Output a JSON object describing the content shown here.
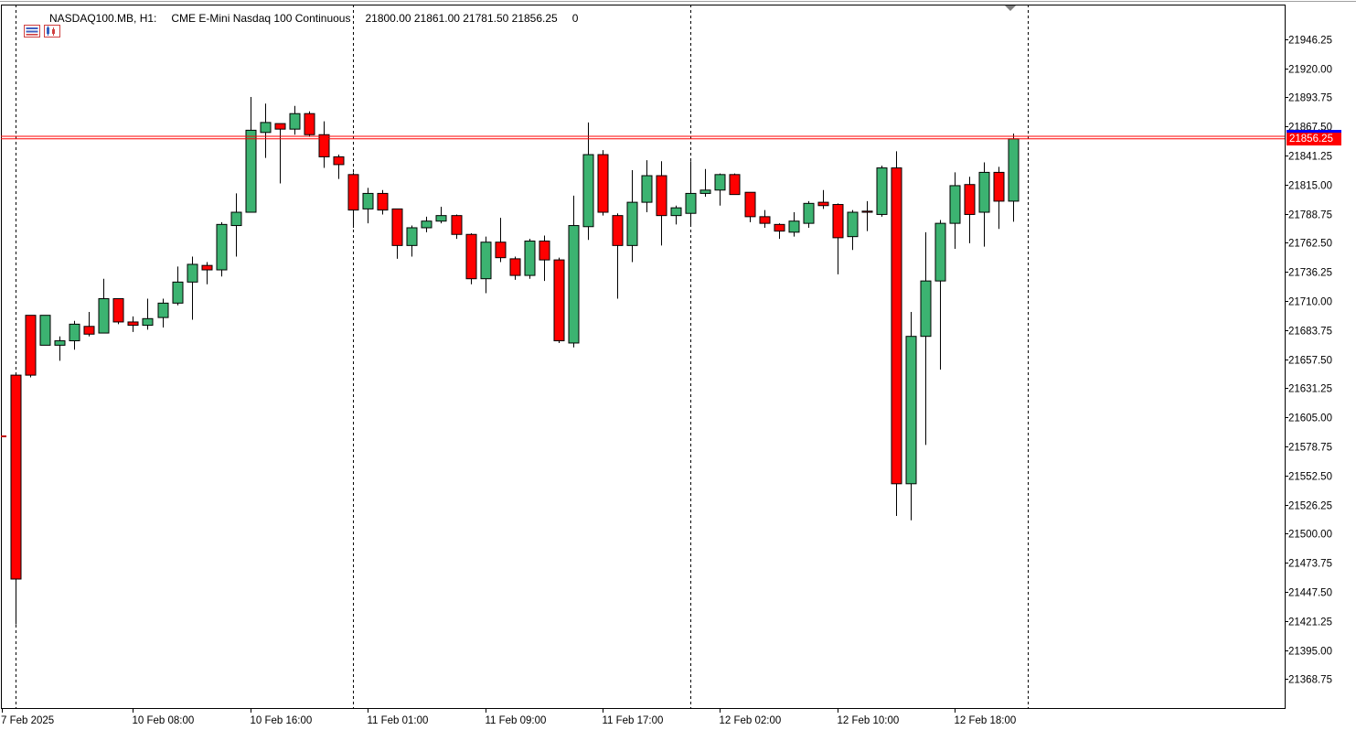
{
  "header": {
    "symbol": "NASDAQ100.MB, H1:",
    "description": "CME E-Mini Nasdaq 100 Continuous",
    "ohlc": "21800.00 21861.00 21781.50 21856.25",
    "volume": "0"
  },
  "colors": {
    "bull": "#3cb371",
    "bear": "#ff0000",
    "wick": "#000000",
    "bid_line": "#ff0000",
    "ask_tag": "#0000ff",
    "grid": "#000000",
    "background": "#ffffff"
  },
  "current_price_label": "21856.25",
  "chart_data": {
    "type": "candlestick",
    "title": "",
    "timeframe": "H1",
    "grid": false,
    "period_separators": true,
    "ylim": [
      21342.6,
      21977.4
    ],
    "y_ticks": [
      "21946.25",
      "21920.00",
      "21893.75",
      "21867.50",
      "21841.25",
      "21815.00",
      "21788.75",
      "21762.50",
      "21736.25",
      "21710.00",
      "21683.75",
      "21657.50",
      "21631.25",
      "21605.00",
      "21578.75",
      "21552.50",
      "21526.25",
      "21500.00",
      "21473.75",
      "21447.50",
      "21421.25",
      "21395.00",
      "21368.75"
    ],
    "x_labels": [
      "7 Feb 2025",
      "10 Feb 08:00",
      "10 Feb 16:00",
      "11 Feb 01:00",
      "11 Feb 09:00",
      "11 Feb 17:00",
      "12 Feb 02:00",
      "12 Feb 10:00",
      "12 Feb 18:00"
    ],
    "x_label_index": [
      0,
      8,
      16,
      24,
      32,
      40,
      48,
      56,
      64
    ],
    "separator_index": [
      0,
      23,
      46,
      69
    ],
    "bid": 21856.25,
    "ask": 21858.5,
    "candles": [
      [
        21643,
        21459,
        21643,
        21418
      ],
      [
        21697,
        21643,
        21697,
        21641
      ],
      [
        21670,
        21697,
        21697,
        21670
      ],
      [
        21670,
        21674,
        21678,
        21656
      ],
      [
        21674,
        21689,
        21692,
        21666
      ],
      [
        21687,
        21680,
        21700,
        21678
      ],
      [
        21681,
        21712,
        21730,
        21681
      ],
      [
        21712,
        21691,
        21712,
        21689
      ],
      [
        21691,
        21688,
        21696,
        21682
      ],
      [
        21688,
        21694,
        21712,
        21684
      ],
      [
        21695,
        21708,
        21712,
        21686
      ],
      [
        21708,
        21727,
        21741,
        21706
      ],
      [
        21727,
        21743,
        21750,
        21693
      ],
      [
        21742,
        21738,
        21745,
        21725
      ],
      [
        21738,
        21779,
        21781,
        21732
      ],
      [
        21778,
        21790,
        21807,
        21750
      ],
      [
        21790,
        21864,
        21894,
        21790
      ],
      [
        21862,
        21871,
        21888,
        21839
      ],
      [
        21870,
        21865,
        21870,
        21816
      ],
      [
        21865,
        21879,
        21886,
        21860
      ],
      [
        21879,
        21860,
        21881,
        21858
      ],
      [
        21860,
        21840,
        21872,
        21830
      ],
      [
        21840,
        21833,
        21842,
        21820
      ],
      [
        21824,
        21792,
        21826,
        21776
      ],
      [
        21793,
        21807,
        21812,
        21780
      ],
      [
        21807,
        21792,
        21810,
        21788
      ],
      [
        21793,
        21760,
        21793,
        21748
      ],
      [
        21760,
        21776,
        21778,
        21750
      ],
      [
        21776,
        21782,
        21786,
        21772
      ],
      [
        21782,
        21787,
        21795,
        21780
      ],
      [
        21787,
        21770,
        21788,
        21766
      ],
      [
        21770,
        21730,
        21771,
        21725
      ],
      [
        21730,
        21763,
        21768,
        21717
      ],
      [
        21763,
        21749,
        21785,
        21745
      ],
      [
        21748,
        21733,
        21750,
        21729
      ],
      [
        21733,
        21764,
        21766,
        21730
      ],
      [
        21764,
        21747,
        21769,
        21728
      ],
      [
        21747,
        21674,
        21749,
        21672
      ],
      [
        21672,
        21778,
        21805,
        21668
      ],
      [
        21777,
        21842,
        21871,
        21765
      ],
      [
        21842,
        21790,
        21846,
        21787
      ],
      [
        21787,
        21760,
        21789,
        21712
      ],
      [
        21760,
        21799,
        21828,
        21745
      ],
      [
        21799,
        21823,
        21837,
        21790
      ],
      [
        21823,
        21787,
        21836,
        21760
      ],
      [
        21787,
        21794,
        21796,
        21779
      ],
      [
        21789,
        21807,
        21836,
        21779
      ],
      [
        21807,
        21810,
        21829,
        21804
      ],
      [
        21810,
        21824,
        21825,
        21796
      ],
      [
        21824,
        21806,
        21825,
        21806
      ],
      [
        21808,
        21786,
        21808,
        21781
      ],
      [
        21786,
        21780,
        21792,
        21776
      ],
      [
        21779,
        21773,
        21780,
        21766
      ],
      [
        21772,
        21782,
        21790,
        21768
      ],
      [
        21780,
        21798,
        21800,
        21776
      ],
      [
        21799,
        21796,
        21810,
        21793
      ],
      [
        21797,
        21767,
        21798,
        21734
      ],
      [
        21768,
        21790,
        21792,
        21756
      ],
      [
        21791,
        21790,
        21800,
        21773
      ],
      [
        21788,
        21830,
        21832,
        21786
      ],
      [
        21830,
        21545,
        21845,
        21516
      ],
      [
        21545,
        21678,
        21700,
        21512
      ],
      [
        21678,
        21728,
        21772,
        21580
      ],
      [
        21728,
        21780,
        21783,
        21648
      ],
      [
        21780,
        21814,
        21826,
        21757
      ],
      [
        21815,
        21788,
        21822,
        21762
      ],
      [
        21790,
        21826,
        21835,
        21759
      ],
      [
        21826,
        21800,
        21831,
        21775
      ],
      [
        21800,
        21856.25,
        21861,
        21781.5
      ]
    ]
  }
}
